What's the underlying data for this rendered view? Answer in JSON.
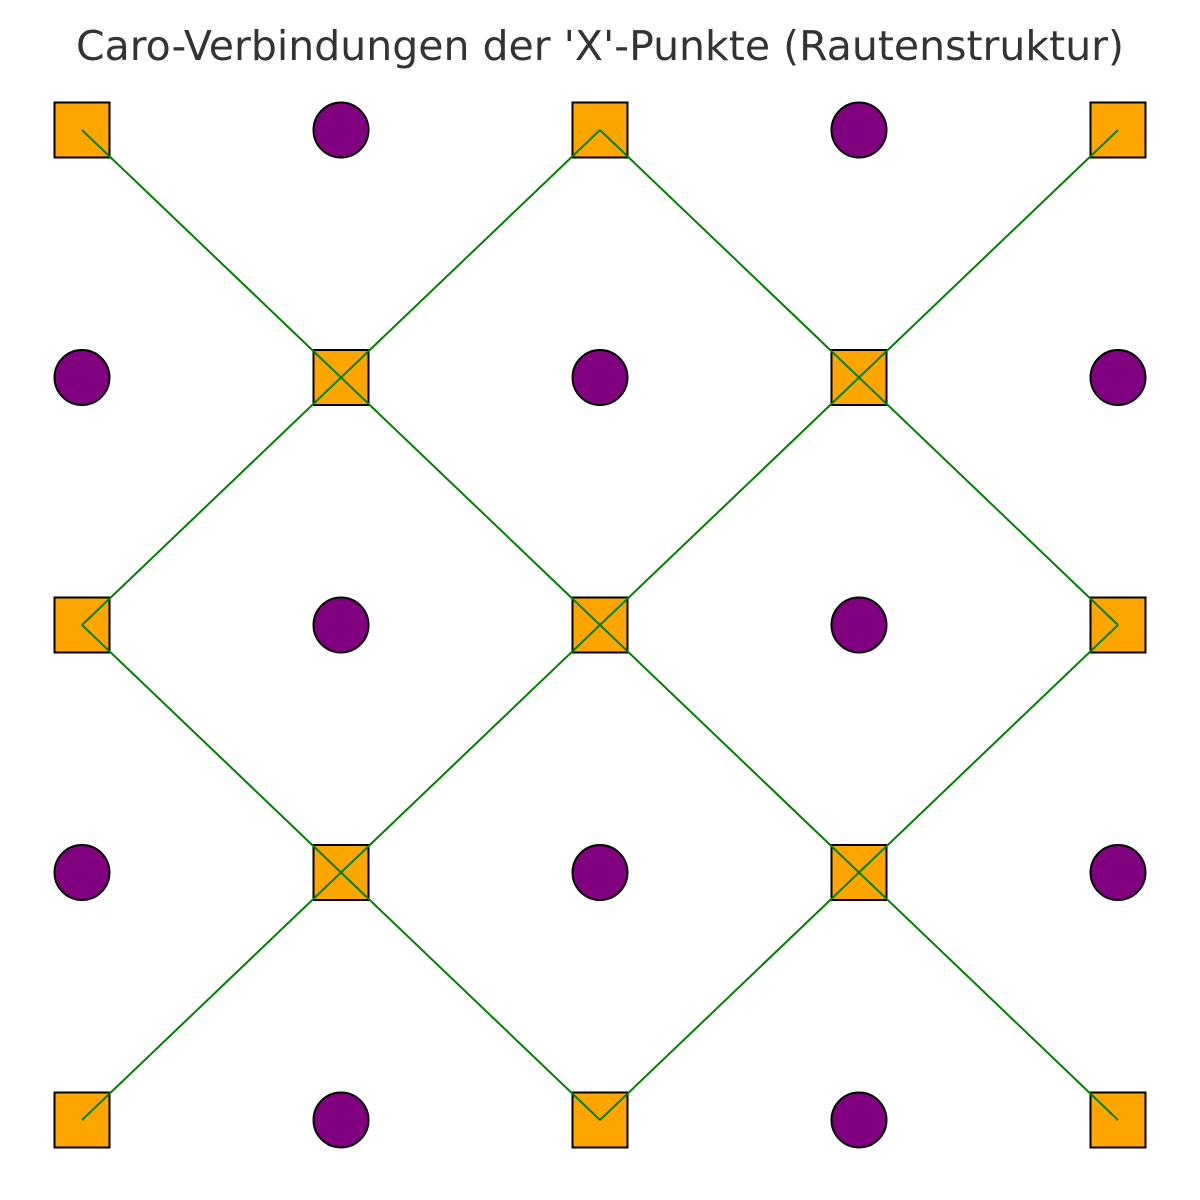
{
  "title": "Caro-Verbindungen der 'X'-Punkte (Rautenstruktur)",
  "grid": {
    "columns": 5,
    "rows": 5
  },
  "colors": {
    "x_point": "#FFA500",
    "o_point": "#800080",
    "outline": "#000000",
    "connection": "#008000"
  },
  "points": {
    "x_marker_icon": "square-marker",
    "o_marker_icon": "circle-marker",
    "x": [
      [
        0,
        0
      ],
      [
        2,
        0
      ],
      [
        4,
        0
      ],
      [
        1,
        1
      ],
      [
        3,
        1
      ],
      [
        0,
        2
      ],
      [
        2,
        2
      ],
      [
        4,
        2
      ],
      [
        1,
        3
      ],
      [
        3,
        3
      ],
      [
        0,
        4
      ],
      [
        2,
        4
      ],
      [
        4,
        4
      ]
    ],
    "o": [
      [
        1,
        0
      ],
      [
        3,
        0
      ],
      [
        0,
        1
      ],
      [
        2,
        1
      ],
      [
        4,
        1
      ],
      [
        1,
        2
      ],
      [
        3,
        2
      ],
      [
        0,
        3
      ],
      [
        2,
        3
      ],
      [
        4,
        3
      ],
      [
        1,
        4
      ],
      [
        3,
        4
      ]
    ]
  },
  "connections": [
    [
      [
        0,
        0
      ],
      [
        1,
        1
      ]
    ],
    [
      [
        1,
        1
      ],
      [
        2,
        0
      ]
    ],
    [
      [
        2,
        0
      ],
      [
        3,
        1
      ]
    ],
    [
      [
        3,
        1
      ],
      [
        4,
        0
      ]
    ],
    [
      [
        1,
        1
      ],
      [
        0,
        2
      ]
    ],
    [
      [
        1,
        1
      ],
      [
        2,
        2
      ]
    ],
    [
      [
        3,
        1
      ],
      [
        2,
        2
      ]
    ],
    [
      [
        3,
        1
      ],
      [
        4,
        2
      ]
    ],
    [
      [
        0,
        2
      ],
      [
        1,
        3
      ]
    ],
    [
      [
        2,
        2
      ],
      [
        1,
        3
      ]
    ],
    [
      [
        2,
        2
      ],
      [
        3,
        3
      ]
    ],
    [
      [
        4,
        2
      ],
      [
        3,
        3
      ]
    ],
    [
      [
        1,
        3
      ],
      [
        0,
        4
      ]
    ],
    [
      [
        1,
        3
      ],
      [
        2,
        4
      ]
    ],
    [
      [
        3,
        3
      ],
      [
        2,
        4
      ]
    ],
    [
      [
        3,
        3
      ],
      [
        4,
        4
      ]
    ]
  ]
}
